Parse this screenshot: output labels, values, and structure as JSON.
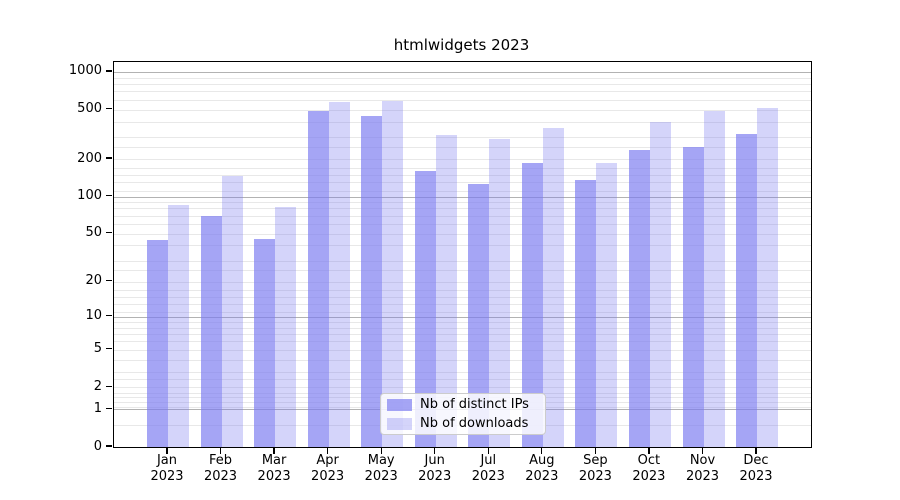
{
  "chart_data": {
    "type": "bar",
    "title": "htmlwidgets 2023",
    "categories": [
      "Jan",
      "Feb",
      "Mar",
      "Apr",
      "May",
      "Jun",
      "Jul",
      "Aug",
      "Sep",
      "Oct",
      "Nov",
      "Dec"
    ],
    "year_label": "2023",
    "series": [
      {
        "name": "Nb of distinct IPs",
        "color": "rgba(122,122,240,0.68)",
        "values": [
          44,
          70,
          45,
          485,
          440,
          160,
          127,
          185,
          135,
          238,
          250,
          320
        ]
      },
      {
        "name": "Nb of downloads",
        "color": "rgba(122,122,240,0.32)",
        "values": [
          85,
          147,
          83,
          570,
          585,
          315,
          292,
          353,
          185,
          397,
          486,
          517
        ]
      }
    ],
    "yscale": "log1p",
    "ylim": [
      0,
      1000
    ],
    "ytick_values": [
      0,
      1,
      2,
      5,
      10,
      20,
      50,
      100,
      200,
      500,
      1000
    ],
    "ytick_labels": [
      "0",
      "1",
      "2",
      "5",
      "10",
      "20",
      "50",
      "100",
      "200",
      "500",
      "1000"
    ],
    "major_gridlines": [
      1,
      10,
      100,
      1000
    ],
    "minor_gridlines": [
      0.5,
      1.1,
      1.3,
      1.5,
      1.7,
      2,
      2.5,
      3,
      4,
      5,
      6,
      7,
      8,
      9,
      11,
      13,
      15,
      17,
      20,
      25,
      30,
      40,
      50,
      60,
      70,
      80,
      90,
      110,
      130,
      150,
      170,
      200,
      250,
      300,
      400,
      500,
      600,
      700,
      800,
      900
    ],
    "grid": true,
    "legend_position": "lower center",
    "colors": {
      "major_grid": "#b2b2b2",
      "minor_grid": "#e8e8e8",
      "axis": "#000000",
      "legend_border": "#cccccc"
    }
  }
}
